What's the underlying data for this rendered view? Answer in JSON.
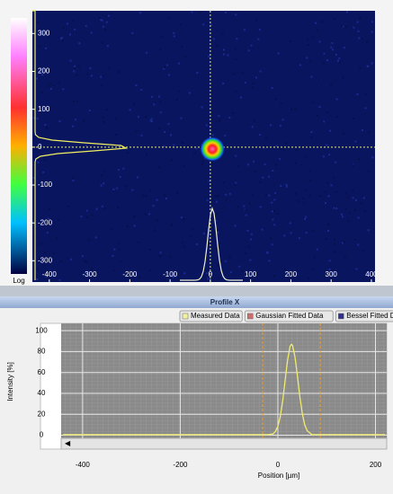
{
  "chart_data": [
    {
      "type": "image",
      "colorbar_label": "Log",
      "xlim": [
        -442,
        409
      ],
      "xticks": [
        -400,
        -300,
        -200,
        -100,
        0,
        100,
        200,
        300,
        400
      ],
      "ylim": [
        -356,
        360
      ],
      "yticks": [
        300,
        200,
        100,
        0,
        -100,
        -200,
        -300
      ],
      "crosshair": [
        0,
        0
      ],
      "spot": [
        5,
        -5
      ],
      "color": "#f0f060"
    },
    {
      "type": "line",
      "title": "Profile X",
      "legend": [
        {
          "name": "Measured Data",
          "color": "#f3f0a0"
        },
        {
          "name": "Gaussian Fitted Data",
          "color": "#c87070"
        },
        {
          "name": "Bessel Fitted Data",
          "color": "#303090"
        }
      ],
      "ylabel": "Intensity [%]",
      "xlabel": "Position [µm]",
      "xlim": [
        -444,
        223
      ],
      "xticks": [
        -400,
        -200,
        0,
        200
      ],
      "ylim": [
        -3,
        107
      ],
      "yticks": [
        0,
        20,
        40,
        60,
        80,
        100
      ],
      "markers": [
        -31,
        87
      ],
      "marker_color": "#e0a040",
      "grid": true,
      "series": [
        {
          "name": "Measured Data",
          "color": "#f0ec70",
          "x": [
            -440,
            -300,
            -200,
            -100,
            -40,
            -20,
            -10,
            -5,
            0,
            5,
            10,
            15,
            20,
            25,
            28,
            30,
            35,
            40,
            45,
            50,
            55,
            60,
            70,
            80,
            100,
            200,
            220
          ],
          "values": [
            0.5,
            0.5,
            0.5,
            0.5,
            0.5,
            0.5,
            1.2,
            3.5,
            8.5,
            18,
            33,
            53,
            72,
            85,
            87,
            86,
            75,
            57,
            37,
            21,
            10,
            4.2,
            0.5,
            0.5,
            0.5,
            0.5,
            0.5
          ]
        }
      ]
    }
  ]
}
